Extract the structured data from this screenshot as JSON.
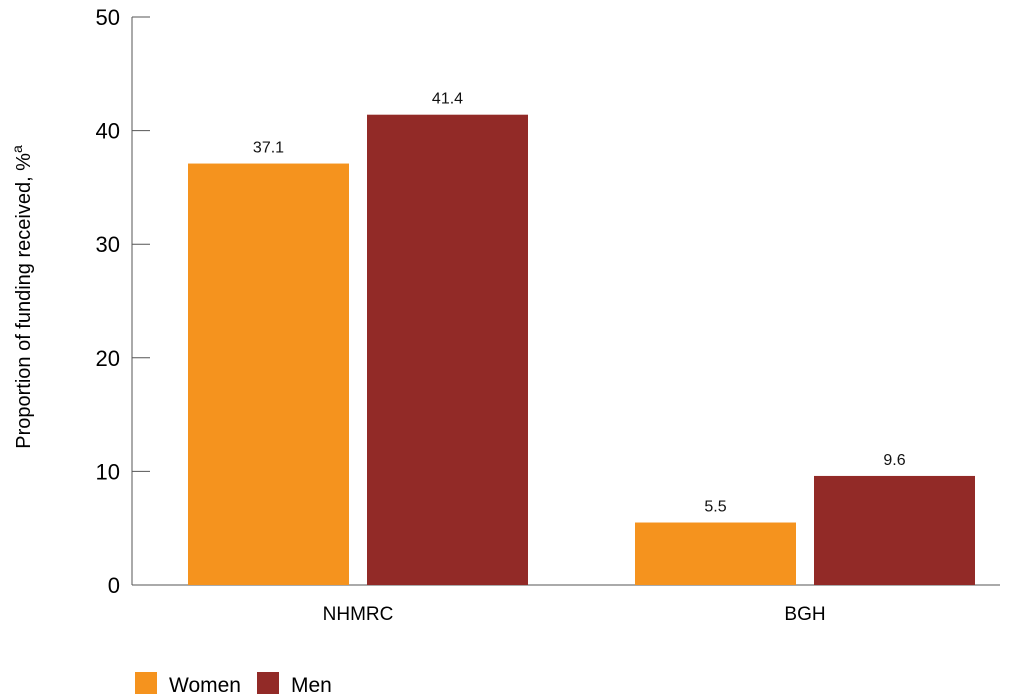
{
  "chart_data": {
    "type": "bar",
    "categories": [
      "NHMRC",
      "BGH"
    ],
    "series": [
      {
        "name": "Women",
        "values": [
          37.1,
          5.5
        ],
        "color": "#F5931E"
      },
      {
        "name": "Men",
        "values": [
          41.4,
          9.6
        ],
        "color": "#922A27"
      }
    ],
    "data_labels": [
      [
        "37.1",
        "5.5"
      ],
      [
        "41.4",
        "9.6"
      ]
    ],
    "ylabel": "Proportion of funding received, %",
    "ylabel_superscript": "a",
    "xlabel": "",
    "ylim": [
      0,
      50
    ],
    "yticks": [
      0,
      10,
      20,
      30,
      40,
      50
    ],
    "grid": false,
    "legend_placement": "bottom-left"
  }
}
